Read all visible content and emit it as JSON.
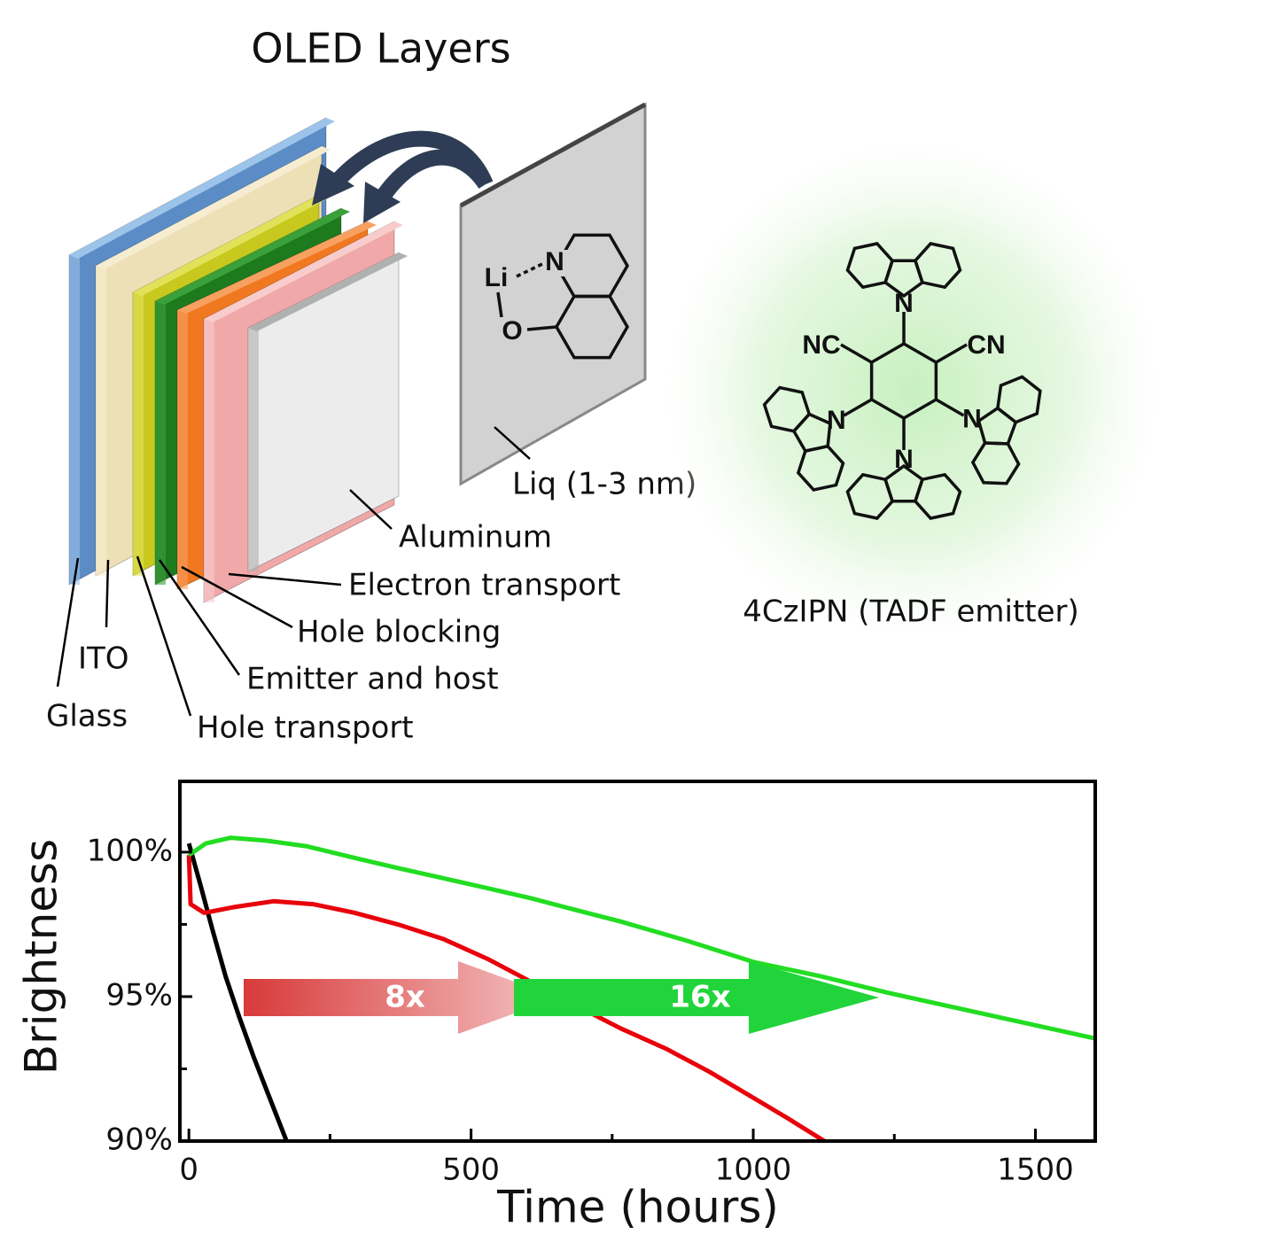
{
  "diagram": {
    "title": "OLED Layers",
    "layers": [
      "Glass",
      "ITO",
      "Hole transport",
      "Emitter and host",
      "Hole blocking",
      "Electron transport",
      "Aluminum"
    ],
    "liq": {
      "label": "Liq (1-3 nm)",
      "atoms": [
        "Li",
        "N",
        "O"
      ]
    },
    "molecule": {
      "label": "4CzIPN (TADF emitter)",
      "atoms": [
        "N",
        "NC",
        "CN",
        "N",
        "N",
        "N"
      ]
    }
  },
  "chart_data": {
    "type": "line",
    "xlabel": "Time (hours)",
    "ylabel": "Brightness",
    "xlim": [
      -16,
      1606
    ],
    "ylim": [
      90,
      102.45
    ],
    "xticks": [
      0,
      500,
      1000,
      1500
    ],
    "xminorticks": [
      250,
      750,
      1250
    ],
    "yticks": [
      {
        "value": 90,
        "label": "90%"
      },
      {
        "value": 95,
        "label": "95%"
      },
      {
        "value": 100,
        "label": "100%"
      }
    ],
    "yminorticks": [
      92.5,
      97.5
    ],
    "annotations": [
      "8x",
      "16x"
    ],
    "series": [
      {
        "color": "#000000",
        "x": [
          0,
          20,
          42,
          65,
          90,
          115,
          137,
          155,
          173
        ],
        "values": [
          100.3,
          98.9,
          97.3,
          95.7,
          94.25,
          92.9,
          91.8,
          90.9,
          90
        ]
      },
      {
        "color": "#e8000b",
        "x": [
          0,
          3,
          27,
          80,
          150,
          220,
          294,
          370,
          450,
          530,
          607,
          685,
          765,
          845,
          922,
          1000,
          1060,
          1126
        ],
        "values": [
          99.9,
          98.2,
          97.9,
          98.1,
          98.3,
          98.2,
          97.9,
          97.5,
          97.0,
          96.3,
          95.5,
          94.7,
          93.9,
          93.2,
          92.4,
          91.5,
          90.8,
          90
        ]
      },
      {
        "color": "#22dd22",
        "x": [
          0,
          30,
          74,
          137,
          210,
          294,
          370,
          450,
          530,
          607,
          685,
          765,
          880,
          1000,
          1120,
          1235,
          1420,
          1606
        ],
        "values": [
          99.9,
          100.3,
          100.5,
          100.4,
          100.2,
          99.8,
          99.45,
          99.1,
          98.75,
          98.4,
          98.0,
          97.6,
          96.95,
          96.2,
          95.7,
          95.15,
          94.35,
          93.55
        ]
      }
    ]
  }
}
